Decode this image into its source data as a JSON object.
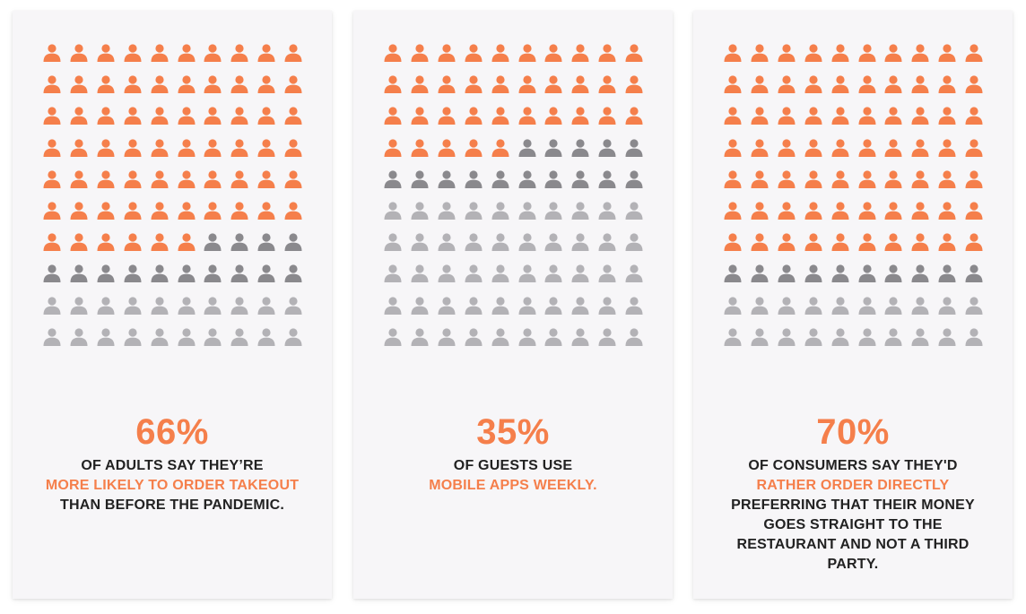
{
  "colors": {
    "highlight": "#f57f4b",
    "secondary": "#8a898d",
    "rest": "#b3b2b6",
    "text": "#222222",
    "card_bg": "#f7f6f8"
  },
  "icon": "person-icon",
  "panels": [
    {
      "percent": "66%",
      "caption": [
        {
          "text": "OF ADULTS SAY THEY’RE",
          "accent": false
        },
        {
          "text": "MORE LIKELY TO ORDER TAKEOUT",
          "accent": true
        },
        {
          "text": "THAN BEFORE THE PANDEMIC.",
          "accent": false
        }
      ]
    },
    {
      "percent": "35%",
      "caption": [
        {
          "text": "OF GUESTS USE",
          "accent": false
        },
        {
          "text": "MOBILE APPS WEEKLY.",
          "accent": true
        }
      ]
    },
    {
      "percent": "70%",
      "caption": [
        {
          "text": "OF CONSUMERS SAY THEY'D",
          "accent": false
        },
        {
          "text": "RATHER ORDER DIRECTLY",
          "accent": true
        },
        {
          "text": "PREFERRING THAT THEIR MONEY",
          "accent": false
        },
        {
          "text": "GOES STRAIGHT TO THE",
          "accent": false
        },
        {
          "text": "RESTAURANT AND NOT A THIRD",
          "accent": false
        },
        {
          "text": "PARTY.",
          "accent": false
        }
      ]
    }
  ],
  "chart_data": {
    "type": "pictograph",
    "grid": {
      "rows": 10,
      "cols": 10
    },
    "series": [
      {
        "value": 66,
        "secondary_count": 14
      },
      {
        "value": 35,
        "secondary_count": 15
      },
      {
        "value": 70,
        "secondary_count": 10
      }
    ]
  }
}
